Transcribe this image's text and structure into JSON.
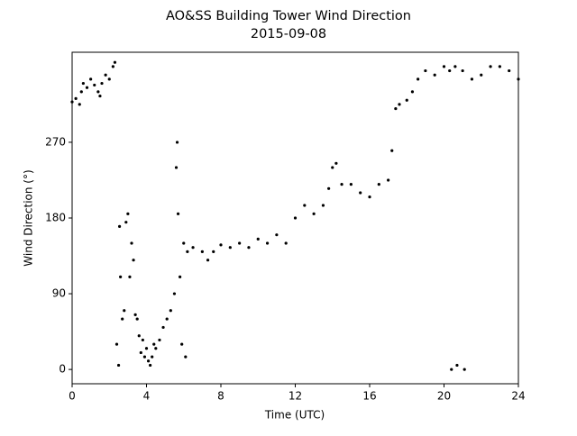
{
  "chart_data": {
    "type": "scatter",
    "title": "AO&SS Building Tower Wind Direction",
    "subtitle": "2015-09-08",
    "x_label": "Time (UTC)",
    "y_label": "Wind Direction (°)",
    "color": "#000000",
    "x": [
      0,
      0.2,
      0.4,
      0.5,
      0.6,
      0.8,
      1.0,
      1.2,
      1.4,
      1.5,
      1.6,
      1.8,
      2.0,
      2.2,
      2.3,
      2.4,
      2.5,
      2.55,
      2.6,
      2.7,
      2.8,
      2.9,
      3.0,
      3.1,
      3.2,
      3.3,
      3.4,
      3.5,
      3.6,
      3.7,
      3.8,
      3.9,
      4.0,
      4.1,
      4.2,
      4.3,
      4.4,
      4.5,
      4.7,
      4.9,
      5.1,
      5.3,
      5.5,
      5.6,
      5.65,
      5.7,
      5.8,
      5.9,
      6.0,
      6.1,
      6.2,
      6.5,
      7.0,
      7.3,
      7.6,
      8.0,
      8.5,
      9.0,
      9.5,
      10.0,
      10.5,
      11.0,
      11.5,
      12.0,
      12.5,
      13.0,
      13.5,
      13.8,
      14.0,
      14.2,
      14.5,
      15.0,
      15.5,
      16.0,
      16.5,
      17.0,
      17.2,
      17.4,
      17.6,
      18.0,
      18.3,
      18.6,
      19.0,
      19.5,
      20.0,
      20.3,
      20.4,
      20.6,
      20.7,
      21.0,
      21.1,
      21.5,
      22.0,
      22.5,
      23.0,
      23.5,
      24.0
    ],
    "values": [
      318,
      322,
      315,
      330,
      340,
      335,
      345,
      338,
      330,
      325,
      340,
      350,
      345,
      360,
      365,
      30,
      5,
      170,
      110,
      60,
      70,
      175,
      185,
      110,
      150,
      130,
      65,
      60,
      40,
      20,
      35,
      15,
      25,
      10,
      5,
      15,
      30,
      25,
      35,
      50,
      60,
      70,
      90,
      240,
      270,
      185,
      110,
      30,
      150,
      15,
      140,
      145,
      140,
      130,
      140,
      148,
      145,
      150,
      145,
      155,
      150,
      160,
      150,
      180,
      195,
      185,
      195,
      215,
      240,
      245,
      220,
      220,
      210,
      205,
      220,
      225,
      260,
      310,
      315,
      320,
      330,
      345,
      355,
      350,
      360,
      355,
      0,
      360,
      5,
      355,
      0,
      345,
      350,
      360,
      360,
      355,
      345
    ],
    "xlim": [
      0,
      24
    ],
    "xticks": [
      0,
      4,
      8,
      12,
      16,
      20,
      24
    ],
    "ylim": [
      -17,
      377
    ],
    "yticks": [
      0,
      90,
      180,
      270
    ],
    "grid": false
  }
}
